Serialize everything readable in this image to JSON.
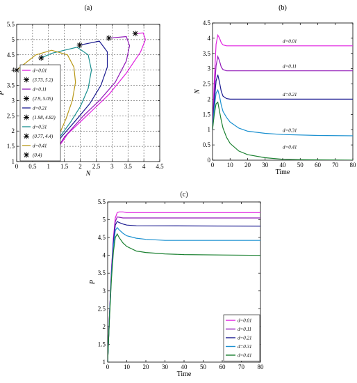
{
  "chart_data": [
    {
      "id": "a",
      "type": "line",
      "panel_label": "(a)",
      "xlabel": "N",
      "ylabel": "P",
      "xlim": [
        0,
        4.5
      ],
      "ylim": [
        1,
        5.5
      ],
      "xticks": [
        "0",
        "0.5",
        "1",
        "1.5",
        "2",
        "2.5",
        "3",
        "3.5",
        "4",
        "4.5"
      ],
      "yticks": [
        "1",
        "1.5",
        "2",
        "2.5",
        "3",
        "3.5",
        "4",
        "4.5",
        "5",
        "5.5"
      ],
      "grid": "dashed",
      "legend_position": "bottom-left",
      "legend": [
        "d=0.01",
        "(3.73, 5.2)",
        "d=0.11",
        "(2.9, 5.05)",
        "d=0.21",
        "(1.98, 4.82)",
        "d=0.31",
        "(0.77, 4.4)",
        "d=0.41",
        "(0.4)"
      ],
      "series": [
        {
          "name": "d=0.01",
          "color": "#e020e0",
          "x": [
            1,
            1.6,
            2.3,
            2.9,
            3.45,
            3.9,
            4.05,
            3.98,
            3.73
          ],
          "y": [
            1,
            1.9,
            2.6,
            3.2,
            3.9,
            4.6,
            5.0,
            5.22,
            5.2
          ]
        },
        {
          "name": "d=0.11",
          "color": "#9018b8",
          "x": [
            1,
            1.5,
            2.1,
            2.6,
            3.1,
            3.45,
            3.55,
            3.45,
            2.9
          ],
          "y": [
            1,
            1.8,
            2.5,
            3.0,
            3.6,
            4.3,
            4.8,
            5.1,
            5.05
          ]
        },
        {
          "name": "d=0.21",
          "color": "#1a1a90",
          "x": [
            1,
            1.4,
            1.9,
            2.3,
            2.65,
            2.85,
            2.85,
            2.6,
            1.98
          ],
          "y": [
            1,
            1.8,
            2.4,
            2.9,
            3.5,
            4.1,
            4.6,
            4.95,
            4.82
          ]
        },
        {
          "name": "d=0.31",
          "color": "#1a9090",
          "x": [
            1,
            1.35,
            1.7,
            2.0,
            2.25,
            2.35,
            2.25,
            1.9,
            1.1,
            0.77
          ],
          "y": [
            1,
            1.8,
            2.3,
            2.8,
            3.4,
            4.0,
            4.5,
            4.75,
            4.55,
            4.4
          ]
        },
        {
          "name": "d=0.41",
          "color": "#b89818",
          "x": [
            1,
            1.3,
            1.55,
            1.75,
            1.85,
            1.8,
            1.6,
            1.1,
            0.6,
            0
          ],
          "y": [
            1,
            1.8,
            2.4,
            3.0,
            3.6,
            4.1,
            4.5,
            4.65,
            4.5,
            4.0
          ]
        }
      ],
      "markers": [
        {
          "label": "(3.73, 5.2)",
          "x": 3.73,
          "y": 5.2
        },
        {
          "label": "(2.9, 5.05)",
          "x": 2.9,
          "y": 5.05
        },
        {
          "label": "(1.98, 4.82)",
          "x": 1.98,
          "y": 4.82
        },
        {
          "label": "(0.77, 4.4)",
          "x": 0.77,
          "y": 4.4
        },
        {
          "label": "(0.4)",
          "x": 0,
          "y": 4
        }
      ]
    },
    {
      "id": "b",
      "type": "line",
      "panel_label": "(b)",
      "xlabel": "Time",
      "ylabel": "N",
      "xlim": [
        0,
        80
      ],
      "ylim": [
        0,
        4.5
      ],
      "xticks": [
        "0",
        "10",
        "20",
        "30",
        "40",
        "50",
        "60",
        "70",
        "80"
      ],
      "yticks": [
        "0",
        "0.5",
        "1",
        "1.5",
        "2",
        "2.5",
        "3",
        "3.5",
        "4",
        "4.5"
      ],
      "grid": "none",
      "series": [
        {
          "name": "d=0.01",
          "color": "#e020e0",
          "x": [
            0,
            1,
            2,
            3,
            4,
            5,
            6,
            8,
            10,
            15,
            80
          ],
          "y": [
            1,
            2.6,
            3.8,
            4.1,
            4.0,
            3.85,
            3.78,
            3.75,
            3.75,
            3.75,
            3.75
          ],
          "label_pos": [
            40,
            3.85
          ]
        },
        {
          "name": "d=0.11",
          "color": "#9018b8",
          "x": [
            0,
            1,
            2,
            3,
            4,
            5,
            6,
            8,
            10,
            15,
            80
          ],
          "y": [
            1,
            2.2,
            3.1,
            3.4,
            3.25,
            3.05,
            2.97,
            2.93,
            2.93,
            2.93,
            2.93
          ],
          "label_pos": [
            40,
            3.03
          ]
        },
        {
          "name": "d=0.21",
          "color": "#1a1a90",
          "x": [
            0,
            1,
            2,
            3,
            4,
            5,
            6,
            8,
            10,
            15,
            80
          ],
          "y": [
            1,
            1.9,
            2.6,
            2.8,
            2.55,
            2.25,
            2.1,
            2.02,
            2.0,
            2.0,
            2.0
          ],
          "label_pos": [
            40,
            2.1
          ]
        },
        {
          "name": "d=0.31",
          "color": "#1a90d0",
          "x": [
            0,
            1,
            2,
            3,
            4,
            5,
            6,
            8,
            10,
            15,
            20,
            30,
            40,
            60,
            80
          ],
          "y": [
            1,
            1.7,
            2.2,
            2.3,
            2.1,
            1.8,
            1.6,
            1.4,
            1.25,
            1.05,
            0.95,
            0.88,
            0.84,
            0.81,
            0.8
          ],
          "label_pos": [
            40,
            0.92
          ]
        },
        {
          "name": "d=0.41",
          "color": "#1a8030",
          "x": [
            0,
            1,
            2,
            3,
            4,
            5,
            6,
            8,
            10,
            15,
            20,
            30,
            40,
            50,
            60,
            80
          ],
          "y": [
            1,
            1.5,
            1.85,
            1.9,
            1.6,
            1.3,
            1.05,
            0.75,
            0.55,
            0.3,
            0.18,
            0.08,
            0.03,
            0.015,
            0.01,
            0.0
          ],
          "label_pos": [
            40,
            0.38
          ]
        }
      ]
    },
    {
      "id": "c",
      "type": "line",
      "panel_label": "(c)",
      "xlabel": "Time",
      "ylabel": "P",
      "xlim": [
        0,
        80
      ],
      "ylim": [
        1,
        5.5
      ],
      "xticks": [
        "0",
        "10",
        "20",
        "30",
        "40",
        "50",
        "60",
        "70",
        "80"
      ],
      "yticks": [
        "1",
        "1.5",
        "2",
        "2.5",
        "3",
        "3.5",
        "4",
        "4.5",
        "5",
        "5.5"
      ],
      "grid": "none",
      "legend_position": "bottom-right",
      "legend": [
        "d=0.01",
        "d=0.11",
        "d=0.21",
        "d=0.31",
        "d=0.41"
      ],
      "series": [
        {
          "name": "d=0.01",
          "color": "#e020e0",
          "x": [
            0,
            1,
            2,
            3,
            4,
            5,
            6,
            8,
            10,
            80
          ],
          "y": [
            1,
            2.4,
            3.6,
            4.5,
            5.05,
            5.2,
            5.22,
            5.22,
            5.2,
            5.2
          ]
        },
        {
          "name": "d=0.11",
          "color": "#9018b8",
          "x": [
            0,
            1,
            2,
            3,
            4,
            5,
            6,
            8,
            10,
            80
          ],
          "y": [
            1,
            2.4,
            3.6,
            4.45,
            4.95,
            5.08,
            5.07,
            5.05,
            5.05,
            5.05
          ]
        },
        {
          "name": "d=0.21",
          "color": "#1a1a90",
          "x": [
            0,
            1,
            2,
            3,
            4,
            5,
            6,
            8,
            10,
            15,
            80
          ],
          "y": [
            1,
            2.4,
            3.5,
            4.35,
            4.85,
            4.95,
            4.92,
            4.88,
            4.85,
            4.83,
            4.82
          ]
        },
        {
          "name": "d=0.31",
          "color": "#1a90d0",
          "x": [
            0,
            1,
            2,
            3,
            4,
            5,
            6,
            8,
            10,
            15,
            20,
            30,
            80
          ],
          "y": [
            1,
            2.35,
            3.45,
            4.25,
            4.7,
            4.78,
            4.72,
            4.62,
            4.55,
            4.48,
            4.45,
            4.42,
            4.42
          ]
        },
        {
          "name": "d=0.41",
          "color": "#1a8030",
          "x": [
            0,
            1,
            2,
            3,
            4,
            5,
            6,
            8,
            10,
            15,
            20,
            30,
            40,
            60,
            80
          ],
          "y": [
            1,
            2.3,
            3.35,
            4.1,
            4.5,
            4.6,
            4.5,
            4.35,
            4.25,
            4.12,
            4.08,
            4.04,
            4.02,
            4.01,
            4.0
          ]
        }
      ]
    }
  ]
}
